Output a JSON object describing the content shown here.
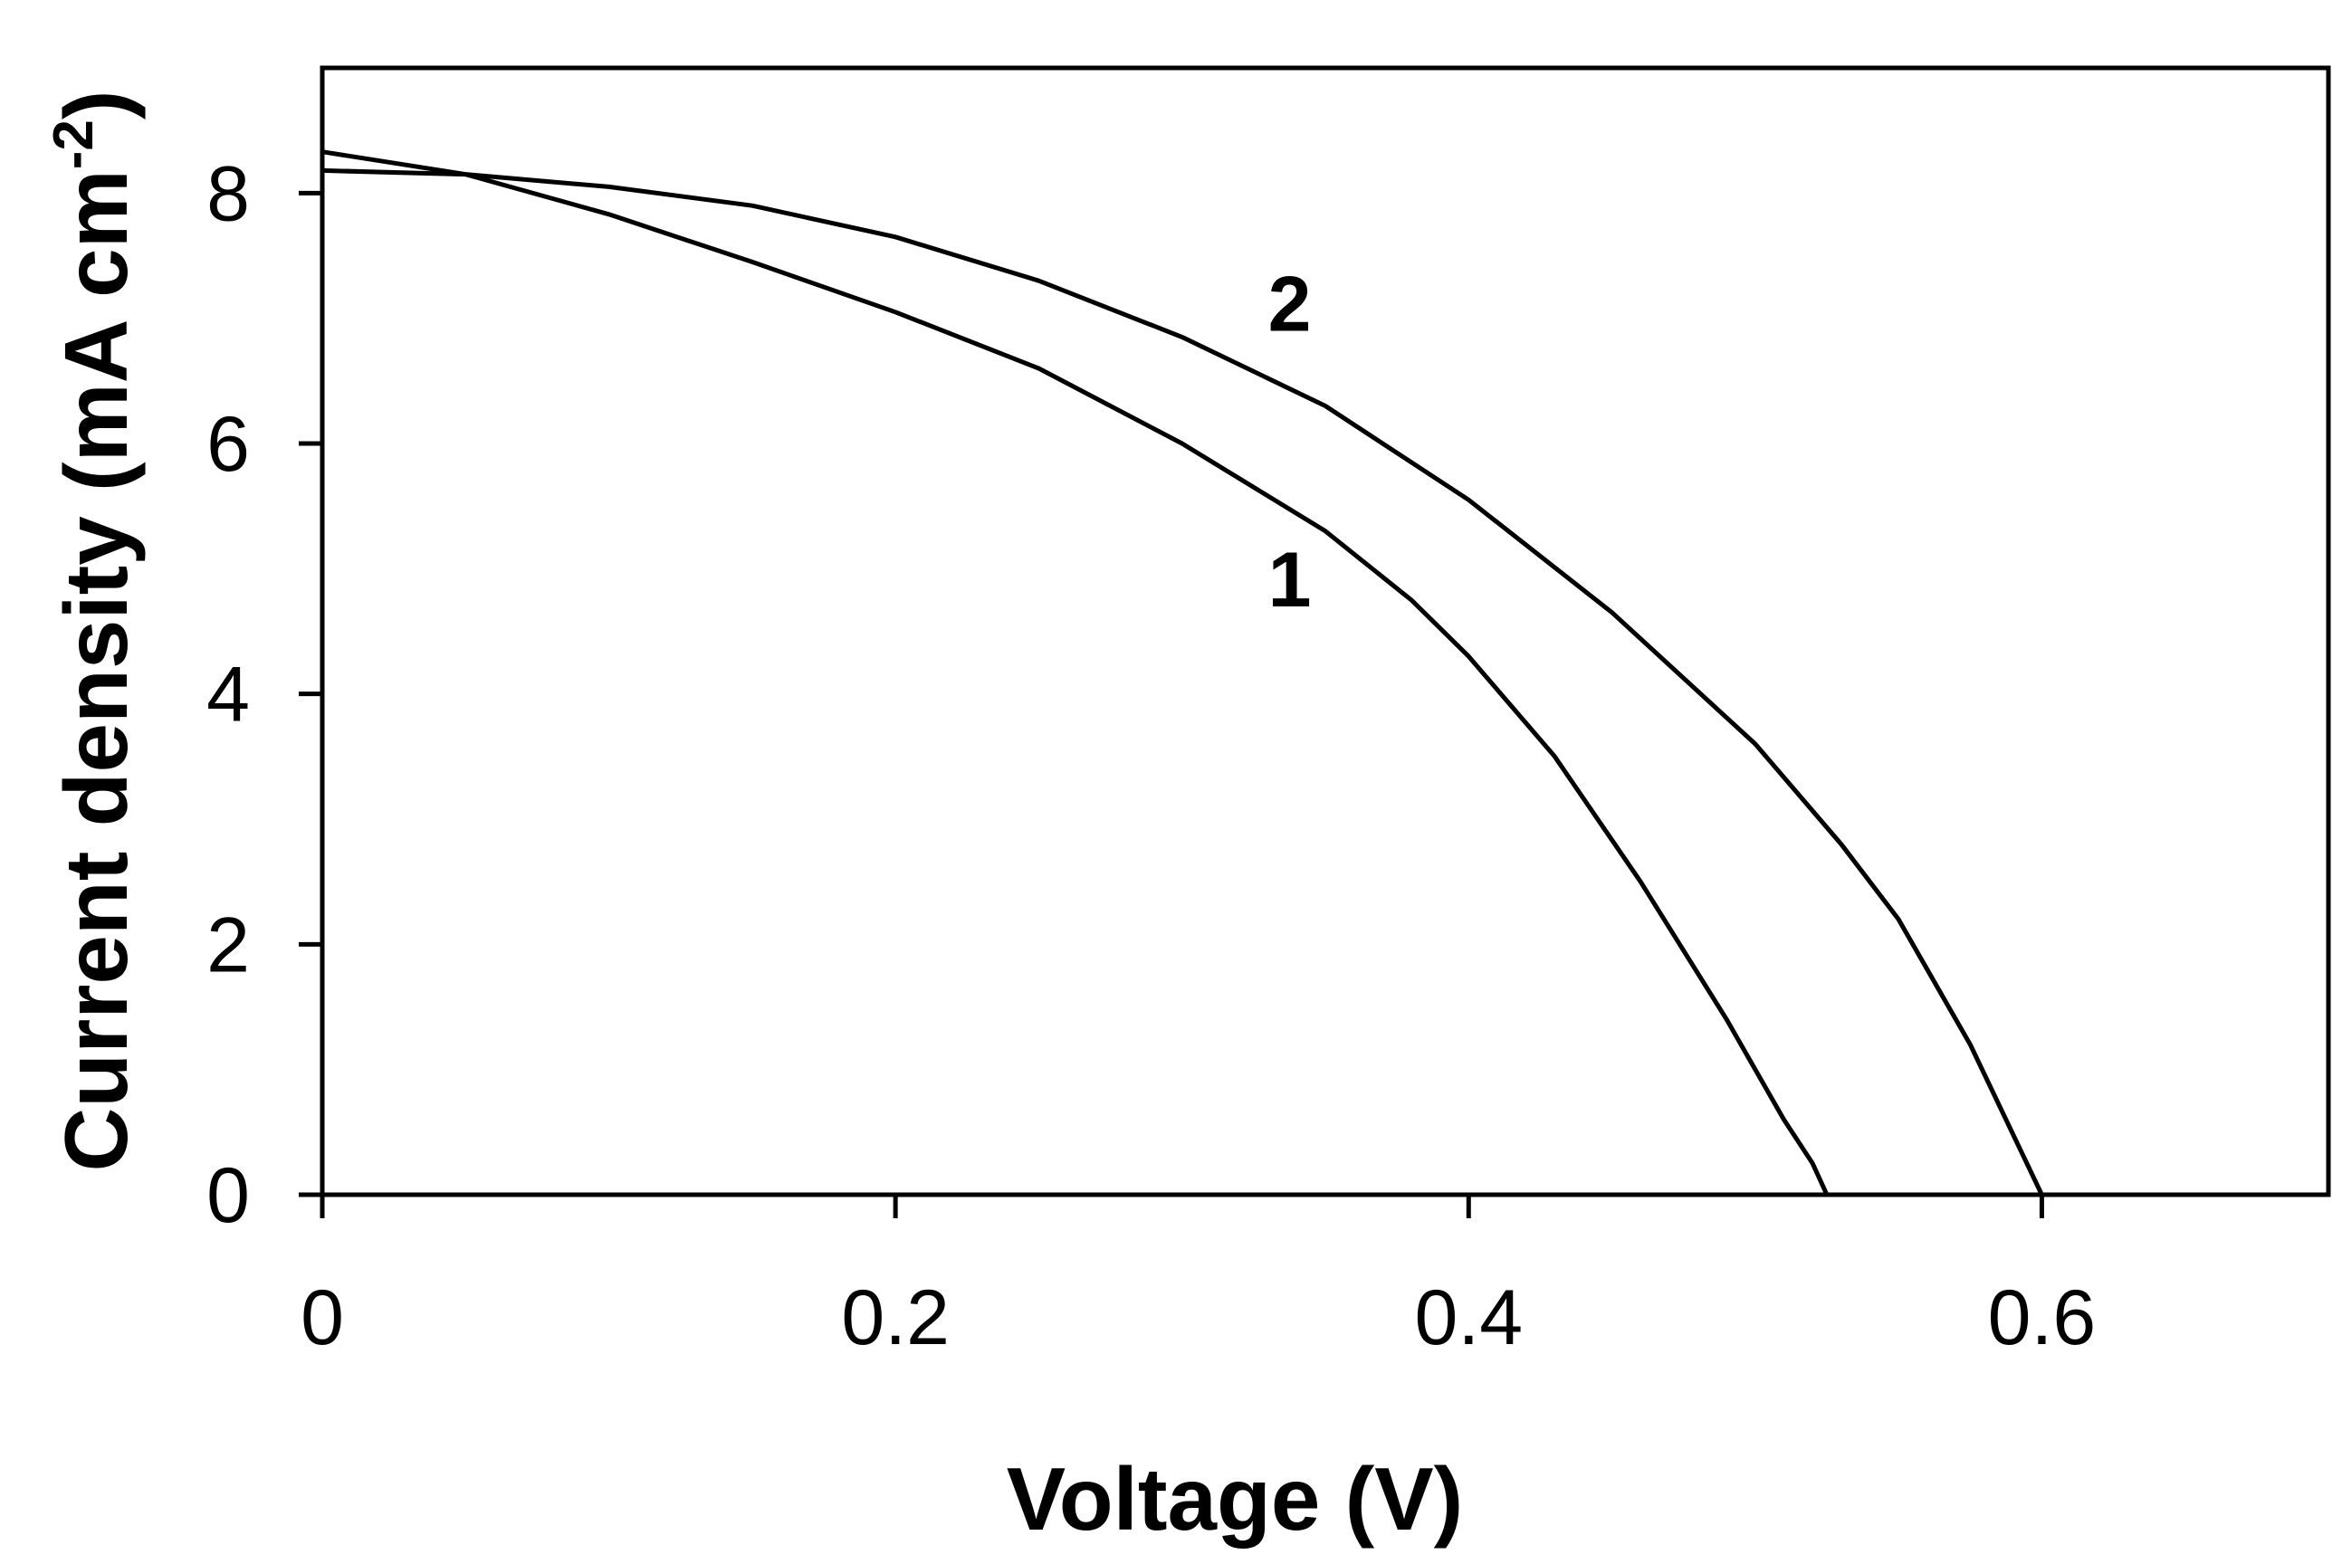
{
  "chart_data": {
    "type": "line",
    "xlabel": "Voltage (V)",
    "ylabel_main": "Current density (mA cm",
    "ylabel_sup": "-2",
    "ylabel_close": ")",
    "xlim": [
      0,
      0.7
    ],
    "ylim": [
      0,
      9
    ],
    "xticks": [
      0,
      0.2,
      0.4,
      0.6
    ],
    "xtick_labels": [
      "0",
      "0.2",
      "0.4",
      "0.6"
    ],
    "yticks": [
      0,
      2,
      4,
      6,
      8
    ],
    "ytick_labels": [
      "0",
      "2",
      "4",
      "6",
      "8"
    ],
    "grid": false,
    "legend": "none",
    "series": [
      {
        "label": "1",
        "label_at": [
          0.33,
          4.7
        ],
        "x": [
          0,
          0.05,
          0.1,
          0.15,
          0.2,
          0.25,
          0.3,
          0.35,
          0.38,
          0.4,
          0.43,
          0.46,
          0.49,
          0.51,
          0.52,
          0.525
        ],
        "y": [
          8.33,
          8.15,
          7.83,
          7.45,
          7.05,
          6.6,
          6.0,
          5.3,
          4.75,
          4.3,
          3.5,
          2.5,
          1.4,
          0.6,
          0.25,
          0
        ]
      },
      {
        "label": "2",
        "label_at": [
          0.33,
          6.9
        ],
        "x": [
          0,
          0.05,
          0.1,
          0.15,
          0.2,
          0.25,
          0.3,
          0.35,
          0.4,
          0.45,
          0.5,
          0.53,
          0.55,
          0.575,
          0.6
        ],
        "y": [
          8.18,
          8.15,
          8.05,
          7.9,
          7.65,
          7.3,
          6.85,
          6.3,
          5.55,
          4.65,
          3.6,
          2.8,
          2.2,
          1.2,
          0
        ]
      }
    ]
  }
}
